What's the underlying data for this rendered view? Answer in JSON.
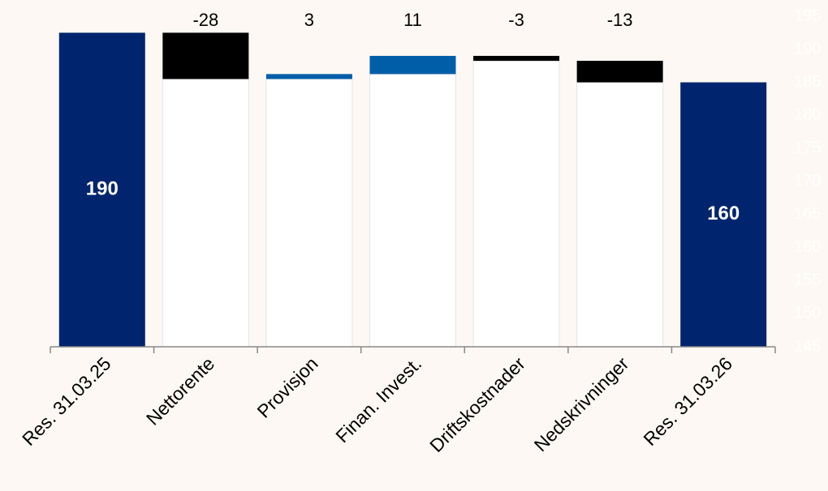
{
  "chart_data": {
    "type": "waterfall",
    "categories": [
      "Res. 31.03.25",
      "Nettorente",
      "Provisjon",
      "Finan. Invest.",
      "Driftskostnader",
      "Nedskrivninger",
      "Res. 31.03.26"
    ],
    "values": [
      190,
      -28,
      3,
      11,
      -3,
      -13,
      160
    ],
    "is_total": [
      true,
      false,
      false,
      false,
      false,
      false,
      true
    ],
    "colors": {
      "total": "#00256e",
      "increase": "#005ea8",
      "decrease": "#000000"
    },
    "ylim": [
      0,
      200
    ],
    "y2lim": [
      145,
      195
    ],
    "y2ticks": [
      145,
      150,
      155,
      160,
      165,
      170,
      175,
      180,
      185,
      190,
      195
    ]
  }
}
